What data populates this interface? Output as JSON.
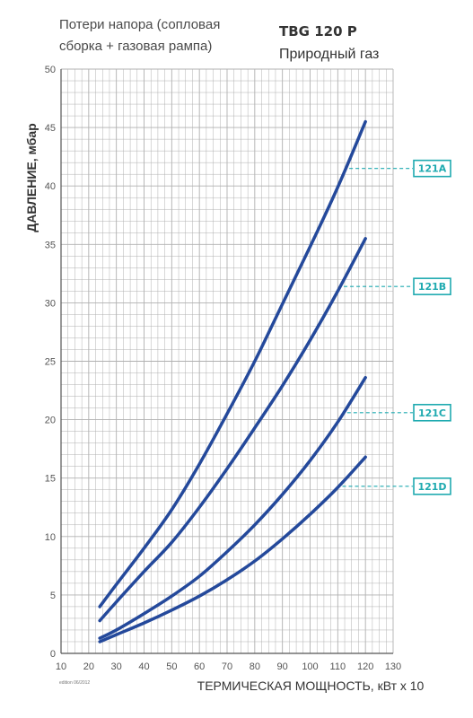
{
  "header": {
    "subtitle_line1": "Потери напора (сопловая",
    "subtitle_line2": "сборка + газовая рампа)",
    "model": "TBG 120 P",
    "gas": "Природный газ"
  },
  "edition_note": "edition 06/2012",
  "colors": {
    "curve": "#24499b",
    "tag": "#1faab0",
    "grid": "#b0b0b0",
    "axis": "#555555"
  },
  "chart_data": {
    "type": "line",
    "title": "",
    "xlabel": "ТЕРМИЧЕСКАЯ МОЩНОСТЬ, кВт х 10",
    "ylabel": "ДАВЛЕНИЕ, мбар",
    "xlim": [
      10,
      130
    ],
    "ylim": [
      0,
      50
    ],
    "x_ticks": [
      10,
      20,
      30,
      40,
      50,
      60,
      70,
      80,
      90,
      100,
      110,
      120,
      130
    ],
    "y_ticks": [
      0,
      5,
      10,
      15,
      20,
      25,
      30,
      35,
      40,
      45,
      50
    ],
    "grid": true,
    "series": [
      {
        "name": "121A",
        "tag_y": 41.5,
        "x": [
          24,
          30,
          40,
          50,
          60,
          70,
          80,
          90,
          100,
          110,
          120
        ],
        "values": [
          4.0,
          5.9,
          9.0,
          12.3,
          16.2,
          20.5,
          25.0,
          29.9,
          34.8,
          39.9,
          45.5
        ]
      },
      {
        "name": "121B",
        "tag_y": 31.4,
        "x": [
          24,
          30,
          40,
          50,
          60,
          70,
          80,
          90,
          100,
          110,
          120
        ],
        "values": [
          2.8,
          4.4,
          7.0,
          9.5,
          12.5,
          15.8,
          19.3,
          22.9,
          26.8,
          31.0,
          35.5
        ]
      },
      {
        "name": "121C",
        "tag_y": 20.6,
        "x": [
          24,
          30,
          40,
          50,
          60,
          70,
          80,
          90,
          100,
          110,
          120
        ],
        "values": [
          1.3,
          2.0,
          3.4,
          4.9,
          6.6,
          8.7,
          11.0,
          13.6,
          16.5,
          19.8,
          23.6
        ]
      },
      {
        "name": "121D",
        "tag_y": 14.3,
        "x": [
          24,
          30,
          40,
          50,
          60,
          70,
          80,
          90,
          100,
          110,
          120
        ],
        "values": [
          1.0,
          1.6,
          2.6,
          3.7,
          4.9,
          6.3,
          7.9,
          9.8,
          11.9,
          14.2,
          16.8
        ]
      }
    ]
  }
}
